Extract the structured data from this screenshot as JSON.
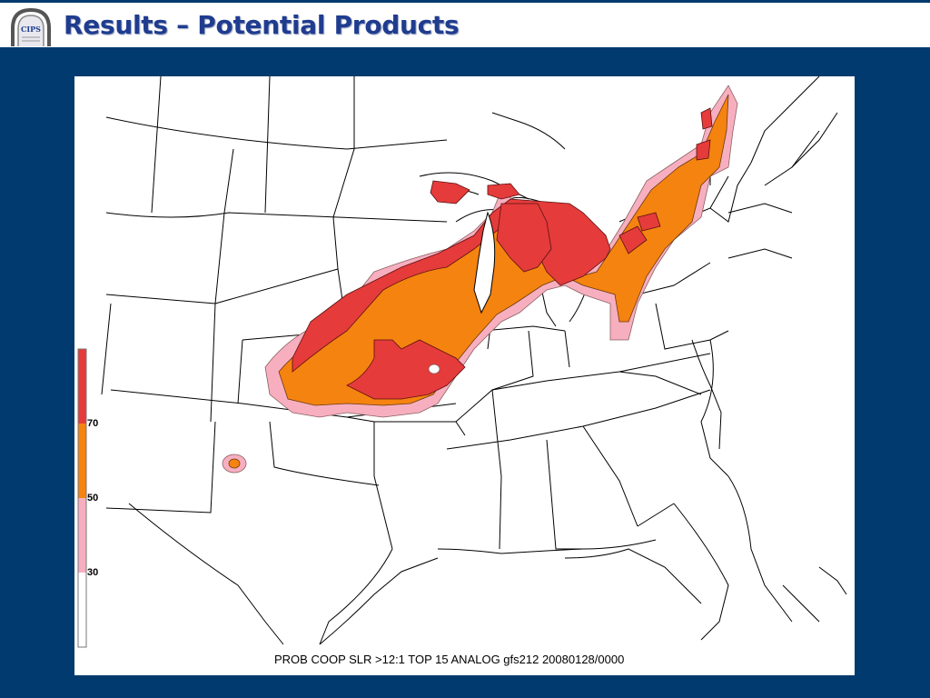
{
  "header": {
    "title": "Results – Potential Products",
    "logo": {
      "icon": "cips-arch-logo-icon",
      "text": "CIPS"
    }
  },
  "map": {
    "caption": "PROB COOP SLR >12:1 TOP 15 ANALOG gfs212 20080128/0000",
    "legend": {
      "labels": [
        "70",
        "50",
        "30"
      ],
      "colors": {
        "high": "#e53b3b",
        "mid": "#f5830f",
        "low": "#f7afc0",
        "none": "#ffffff"
      }
    }
  }
}
